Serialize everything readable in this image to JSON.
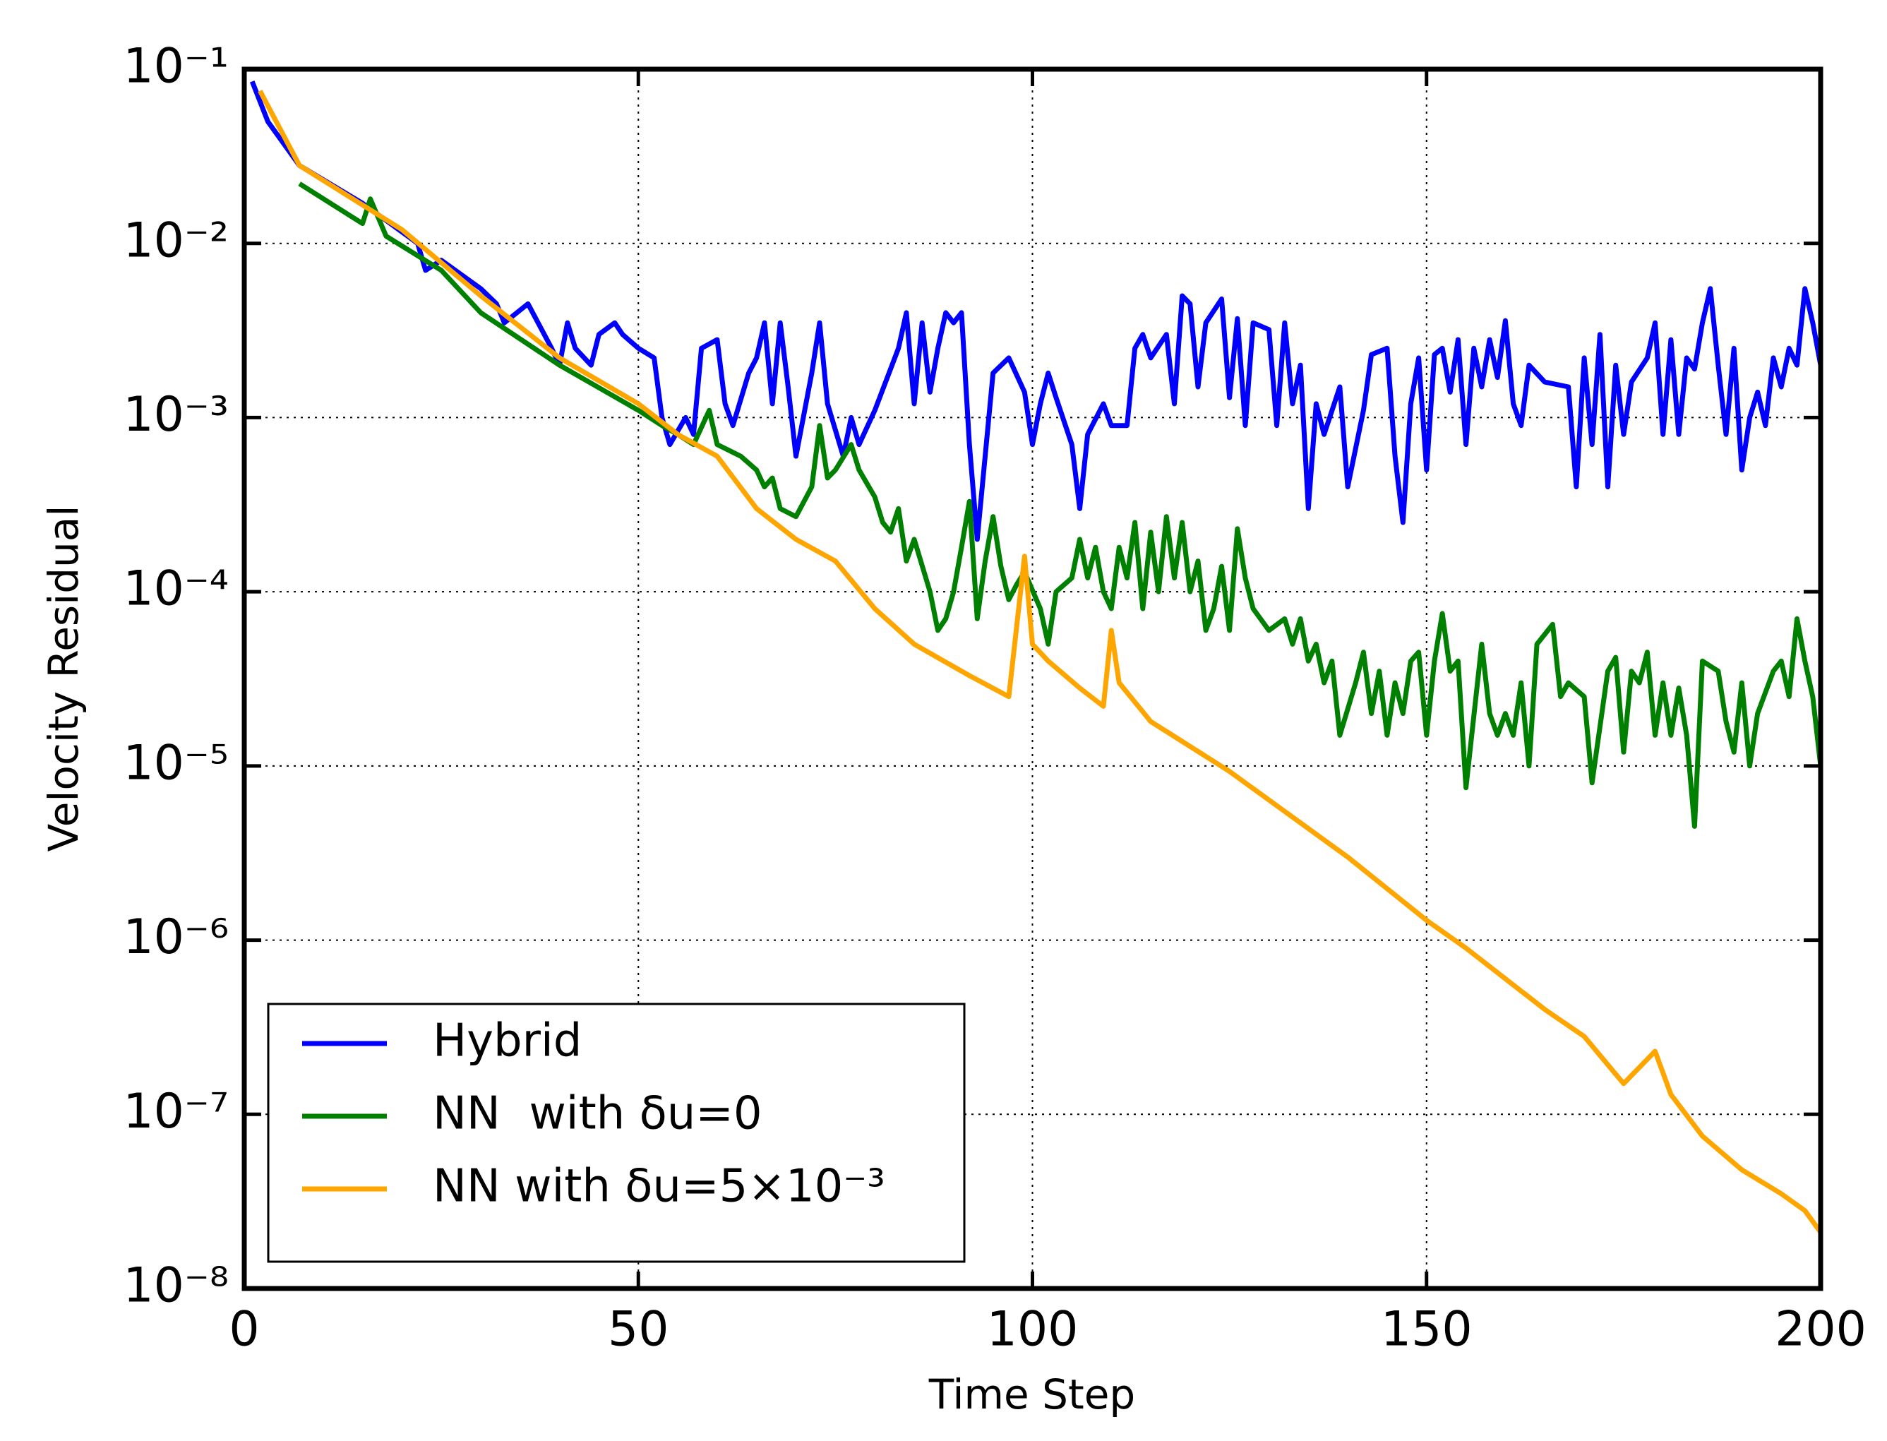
{
  "chart_data": {
    "type": "line",
    "xlabel": "Time Step",
    "ylabel": "Velocity Residual",
    "xlim": [
      0,
      200
    ],
    "xticks": [
      0,
      50,
      100,
      150,
      200
    ],
    "ylim": [
      1e-08,
      0.1
    ],
    "yscale": "log",
    "yticks": [
      {
        "value": 1e-08,
        "label": "10⁻⁸"
      },
      {
        "value": 1e-07,
        "label": "10⁻⁷"
      },
      {
        "value": 1e-06,
        "label": "10⁻⁶"
      },
      {
        "value": 1e-05,
        "label": "10⁻⁵"
      },
      {
        "value": 0.0001,
        "label": "10⁻⁴"
      },
      {
        "value": 0.001,
        "label": "10⁻³"
      },
      {
        "value": 0.01,
        "label": "10⁻²"
      },
      {
        "value": 0.1,
        "label": "10⁻¹"
      }
    ],
    "grid": true,
    "legend": "lower left",
    "series": [
      {
        "name": "Hybrid",
        "color": "#0000ff",
        "x": [
          1,
          3,
          7,
          15,
          22,
          23,
          25,
          30,
          32,
          33,
          36,
          39,
          40,
          41,
          42,
          44,
          45,
          47,
          48,
          50,
          52,
          53,
          54,
          56,
          57,
          58,
          60,
          61,
          62,
          64,
          65,
          66,
          67,
          68,
          69,
          70,
          72,
          73,
          74,
          76,
          77,
          78,
          80,
          83,
          84,
          85,
          86,
          87,
          88,
          89,
          90,
          91,
          92,
          93,
          94,
          95,
          97,
          99,
          100,
          101,
          102,
          103,
          105,
          106,
          107,
          109,
          110,
          112,
          113,
          114,
          115,
          117,
          118,
          119,
          120,
          121,
          122,
          124,
          125,
          126,
          127,
          128,
          130,
          131,
          132,
          133,
          134,
          135,
          136,
          137,
          139,
          140,
          142,
          143,
          145,
          146,
          147,
          148,
          149,
          150,
          151,
          152,
          153,
          154,
          155,
          156,
          157,
          158,
          159,
          160,
          161,
          162,
          163,
          165,
          168,
          169,
          170,
          171,
          172,
          173,
          174,
          175,
          176,
          178,
          179,
          180,
          181,
          182,
          183,
          184,
          185,
          186,
          187,
          188,
          189,
          190,
          191,
          192,
          193,
          194,
          195,
          196,
          197,
          198,
          199,
          200
        ],
        "values": [
          0.085,
          0.05,
          0.028,
          0.017,
          0.01,
          0.007,
          0.008,
          0.0055,
          0.0045,
          0.0035,
          0.0045,
          0.0025,
          0.002,
          0.0035,
          0.0025,
          0.002,
          0.003,
          0.0035,
          0.003,
          0.0025,
          0.0022,
          0.001,
          0.0007,
          0.001,
          0.0008,
          0.0025,
          0.0028,
          0.0012,
          0.0009,
          0.0018,
          0.0022,
          0.0035,
          0.0012,
          0.0035,
          0.0015,
          0.0006,
          0.0018,
          0.0035,
          0.0012,
          0.0006,
          0.001,
          0.0007,
          0.0011,
          0.0025,
          0.004,
          0.0012,
          0.0035,
          0.0014,
          0.0025,
          0.004,
          0.0035,
          0.004,
          0.0007,
          0.0002,
          0.0006,
          0.0018,
          0.0022,
          0.0014,
          0.0007,
          0.0012,
          0.0018,
          0.0013,
          0.0007,
          0.0003,
          0.0008,
          0.0012,
          0.0009,
          0.0009,
          0.0025,
          0.003,
          0.0022,
          0.003,
          0.0012,
          0.005,
          0.0045,
          0.0015,
          0.0035,
          0.0048,
          0.0013,
          0.0037,
          0.0009,
          0.0035,
          0.0032,
          0.0009,
          0.0035,
          0.0012,
          0.002,
          0.0003,
          0.0012,
          0.0008,
          0.0015,
          0.0004,
          0.0011,
          0.0023,
          0.0025,
          0.0006,
          0.00025,
          0.0012,
          0.0022,
          0.0005,
          0.0023,
          0.0025,
          0.0014,
          0.0028,
          0.0007,
          0.0025,
          0.0015,
          0.0028,
          0.0017,
          0.0036,
          0.0012,
          0.0009,
          0.002,
          0.0016,
          0.0015,
          0.0004,
          0.0022,
          0.0007,
          0.003,
          0.0004,
          0.002,
          0.0008,
          0.0016,
          0.0022,
          0.0035,
          0.0008,
          0.0028,
          0.0008,
          0.0022,
          0.0019,
          0.0035,
          0.0055,
          0.002,
          0.0008,
          0.0025,
          0.0005,
          0.001,
          0.0014,
          0.0009,
          0.0022,
          0.0015,
          0.0025,
          0.002,
          0.0055,
          0.0035,
          0.002
        ]
      },
      {
        "name": "NN  with δu=0",
        "color": "#008000",
        "x": [
          7,
          15,
          16,
          18,
          25,
          30,
          40,
          50,
          53,
          55,
          57,
          59,
          60,
          63,
          65,
          66,
          67,
          68,
          70,
          72,
          73,
          74,
          75,
          77,
          78,
          80,
          81,
          82,
          83,
          84,
          85,
          87,
          88,
          89,
          90,
          91,
          92,
          93,
          94,
          95,
          96,
          97,
          98,
          99,
          101,
          102,
          103,
          105,
          106,
          107,
          108,
          109,
          110,
          111,
          112,
          113,
          114,
          115,
          116,
          117,
          118,
          119,
          120,
          121,
          122,
          123,
          124,
          125,
          126,
          127,
          128,
          130,
          132,
          133,
          134,
          135,
          136,
          137,
          138,
          139,
          141,
          142,
          143,
          144,
          145,
          146,
          147,
          148,
          149,
          150,
          151,
          152,
          153,
          154,
          155,
          157,
          158,
          159,
          160,
          161,
          162,
          163,
          164,
          166,
          167,
          168,
          170,
          171,
          173,
          174,
          175,
          176,
          177,
          178,
          179,
          180,
          181,
          182,
          183,
          184,
          185,
          187,
          188,
          189,
          190,
          191,
          192,
          194,
          195,
          196,
          197,
          198,
          199,
          200
        ],
        "values": [
          0.022,
          0.013,
          0.018,
          0.011,
          0.007,
          0.004,
          0.002,
          0.0011,
          0.0009,
          0.0008,
          0.0007,
          0.0011,
          0.0007,
          0.0006,
          0.0005,
          0.0004,
          0.00045,
          0.0003,
          0.00027,
          0.0004,
          0.0009,
          0.00045,
          0.0005,
          0.0007,
          0.0005,
          0.00035,
          0.00025,
          0.00022,
          0.0003,
          0.00015,
          0.0002,
          0.0001,
          6e-05,
          7e-05,
          0.0001,
          0.00018,
          0.00033,
          7e-05,
          0.00015,
          0.00027,
          0.00014,
          9e-05,
          0.00011,
          0.00013,
          8e-05,
          5e-05,
          0.0001,
          0.00012,
          0.0002,
          0.00012,
          0.00018,
          0.0001,
          8e-05,
          0.00018,
          0.00012,
          0.00025,
          8e-05,
          0.00022,
          0.0001,
          0.00027,
          0.00012,
          0.00025,
          0.0001,
          0.00015,
          6e-05,
          8e-05,
          0.00014,
          6e-05,
          0.00023,
          0.00012,
          8e-05,
          6e-05,
          7e-05,
          5e-05,
          7e-05,
          4e-05,
          5e-05,
          3e-05,
          4e-05,
          1.5e-05,
          3e-05,
          4.5e-05,
          2e-05,
          3.5e-05,
          1.5e-05,
          3e-05,
          2e-05,
          4e-05,
          4.5e-05,
          1.5e-05,
          4e-05,
          7.5e-05,
          3.5e-05,
          4e-05,
          7.5e-06,
          5e-05,
          2e-05,
          1.5e-05,
          2e-05,
          1.5e-05,
          3e-05,
          1e-05,
          5e-05,
          6.5e-05,
          2.5e-05,
          3e-05,
          2.5e-05,
          8e-06,
          3.5e-05,
          4.2e-05,
          1.2e-05,
          3.5e-05,
          3e-05,
          4.5e-05,
          1.5e-05,
          3e-05,
          1.5e-05,
          2.8e-05,
          1.5e-05,
          4.5e-06,
          4e-05,
          3.5e-05,
          1.8e-05,
          1.2e-05,
          3e-05,
          1e-05,
          2e-05,
          3.5e-05,
          4e-05,
          2.5e-05,
          7e-05,
          4e-05,
          2.5e-05,
          1e-05
        ]
      },
      {
        "name": "NN with δu=5×10⁻³",
        "color": "#ffa500",
        "x": [
          2,
          7,
          20,
          30,
          40,
          50,
          55,
          60,
          65,
          70,
          75,
          80,
          85,
          92,
          97,
          99,
          100,
          102,
          106,
          109,
          110,
          111,
          115,
          125,
          140,
          150,
          155,
          165,
          170,
          175,
          179,
          181,
          185,
          190,
          195,
          198,
          200
        ],
        "values": [
          0.075,
          0.028,
          0.012,
          0.005,
          0.0022,
          0.0012,
          0.0008,
          0.0006,
          0.0003,
          0.0002,
          0.00015,
          8e-05,
          5e-05,
          3.3e-05,
          2.5e-05,
          0.00016,
          5e-05,
          4e-05,
          2.8e-05,
          2.2e-05,
          6e-05,
          3e-05,
          1.8e-05,
          9.3e-06,
          3e-06,
          1.3e-06,
          9e-07,
          4e-07,
          2.8e-07,
          1.5e-07,
          2.3e-07,
          1.3e-07,
          7.5e-08,
          4.8e-08,
          3.5e-08,
          2.8e-08,
          2.1e-08
        ]
      }
    ]
  }
}
